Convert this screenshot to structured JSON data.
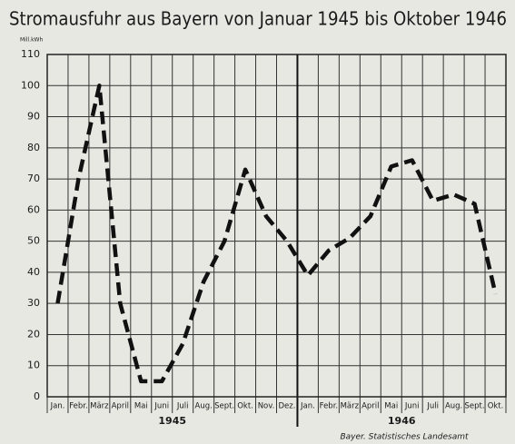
{
  "chart_data": {
    "type": "line",
    "title": "Stromausfuhr aus Bayern von Januar 1945 bis Oktober 1946",
    "y_axis_label": "Mill.kWh",
    "categories": [
      "Jan.",
      "Febr.",
      "März",
      "April",
      "Mai",
      "Juni",
      "Juli",
      "Aug.",
      "Sept.",
      "Okt.",
      "Nov.",
      "Dez.",
      "Jan.",
      "Febr.",
      "März",
      "April",
      "Mai",
      "Juni",
      "Juli",
      "Aug.",
      "Sept.",
      "Okt."
    ],
    "year_labels": [
      "1945",
      "1946"
    ],
    "series": [
      {
        "name": "Stromausfuhr",
        "color": "#111111",
        "values": [
          30,
          70,
          100,
          30,
          5,
          5,
          17,
          37,
          50,
          73,
          58,
          50,
          39,
          47,
          51,
          58,
          74,
          76,
          63,
          65,
          62,
          33
        ]
      }
    ],
    "ylim": [
      0,
      110
    ],
    "yticks": [
      0,
      10,
      20,
      30,
      40,
      50,
      60,
      70,
      80,
      90,
      100,
      110
    ],
    "grid": true,
    "source": "Bayer. Statistisches Landesamt"
  }
}
